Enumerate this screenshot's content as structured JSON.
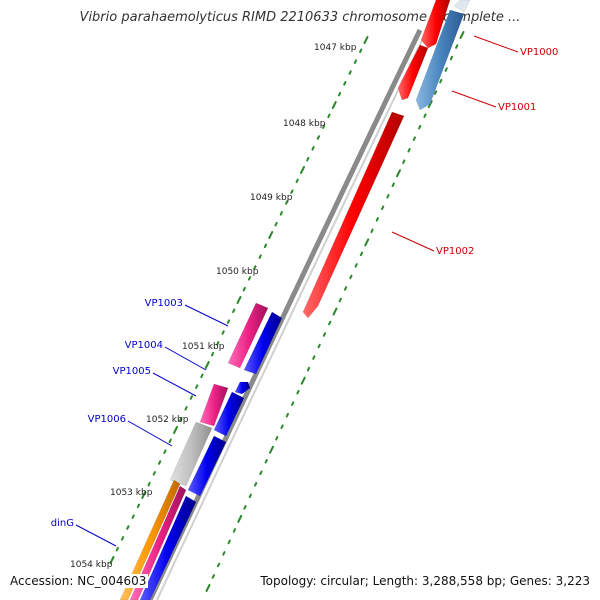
{
  "title": "Vibrio parahaemolyticus RIMD 2210633 chromosome I, complete ...",
  "footer": {
    "accession": "Accession: NC_004603",
    "summary": "Topology: circular; Length: 3,288,558 bp; Genes: 3,223"
  },
  "colors": {
    "backbone": "#8a8a8a",
    "tick": "#2a8a2a",
    "label_red": "#cc0000",
    "label_blue": "#0000cc",
    "feature_red": "#ff0000",
    "feature_blue": "#0000ee",
    "feature_steelblue": "#4a86c0",
    "feature_pink": "#ee2288",
    "feature_gray": "#c0c0c0",
    "feature_orange": "#ff9900"
  },
  "ticks": [
    {
      "label": "1047 kbp"
    },
    {
      "label": "1048 kbp"
    },
    {
      "label": "1049 kbp"
    },
    {
      "label": "1050 kbp"
    },
    {
      "label": "1051 kbp"
    },
    {
      "label": "1052 kbp"
    },
    {
      "label": "1053 kbp"
    },
    {
      "label": "1054 kbp"
    }
  ],
  "gene_labels": [
    {
      "name": "VP1000",
      "color": "red"
    },
    {
      "name": "VP1001",
      "color": "red"
    },
    {
      "name": "VP1002",
      "color": "red"
    },
    {
      "name": "VP1003",
      "color": "blue"
    },
    {
      "name": "VP1004",
      "color": "blue"
    },
    {
      "name": "VP1005",
      "color": "blue"
    },
    {
      "name": "VP1006",
      "color": "blue"
    },
    {
      "name": "dinG",
      "color": "blue"
    }
  ]
}
